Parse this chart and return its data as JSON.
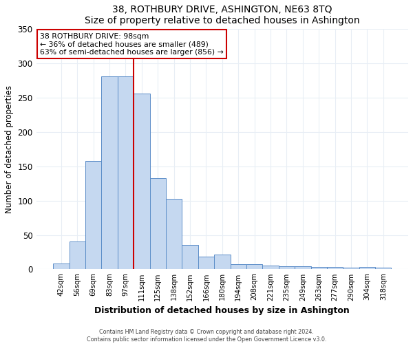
{
  "title": "38, ROTHBURY DRIVE, ASHINGTON, NE63 8TQ",
  "subtitle": "Size of property relative to detached houses in Ashington",
  "xlabel": "Distribution of detached houses by size in Ashington",
  "ylabel": "Number of detached properties",
  "bar_labels": [
    "42sqm",
    "56sqm",
    "69sqm",
    "83sqm",
    "97sqm",
    "111sqm",
    "125sqm",
    "138sqm",
    "152sqm",
    "166sqm",
    "180sqm",
    "194sqm",
    "208sqm",
    "221sqm",
    "235sqm",
    "249sqm",
    "263sqm",
    "277sqm",
    "290sqm",
    "304sqm",
    "318sqm"
  ],
  "bar_heights": [
    9,
    41,
    158,
    281,
    281,
    256,
    133,
    103,
    36,
    19,
    22,
    8,
    8,
    6,
    4,
    4,
    3,
    3,
    2,
    3,
    2
  ],
  "bar_color": "#c5d8f0",
  "bar_edge_color": "#5b8dc8",
  "property_label": "38 ROTHBURY DRIVE: 98sqm",
  "annotation_line1": "← 36% of detached houses are smaller (489)",
  "annotation_line2": "63% of semi-detached houses are larger (856) →",
  "vline_color": "#cc0000",
  "annotation_box_edge": "#cc0000",
  "vline_x": 4.5,
  "ylim": [
    0,
    350
  ],
  "yticks": [
    0,
    50,
    100,
    150,
    200,
    250,
    300,
    350
  ],
  "footer_line1": "Contains HM Land Registry data © Crown copyright and database right 2024.",
  "footer_line2": "Contains public sector information licensed under the Open Government Licence v3.0.",
  "bg_color": "#ffffff",
  "plot_bg_color": "#ffffff",
  "grid_color": "#e8eef5"
}
